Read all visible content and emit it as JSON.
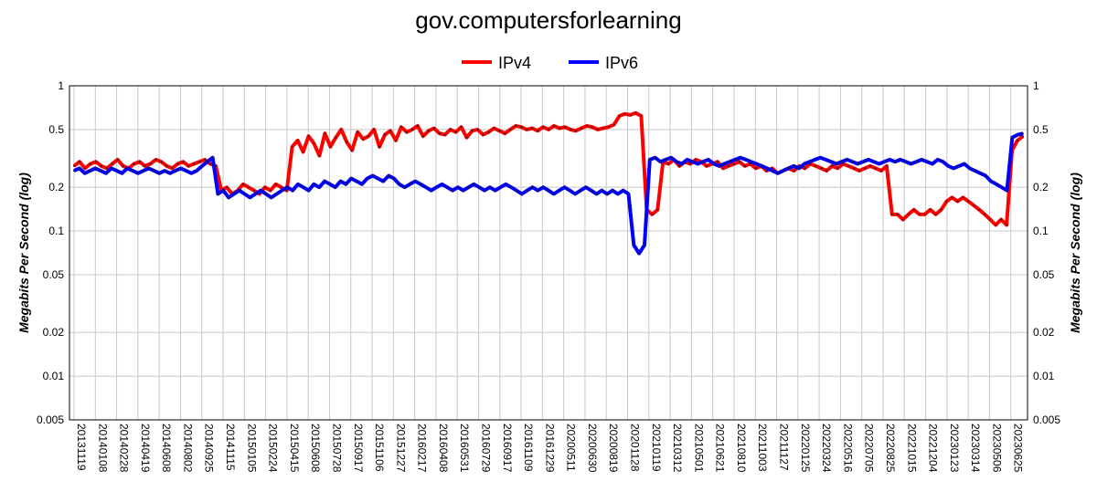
{
  "chart_data": {
    "type": "line",
    "title": "gov.computersforlearning",
    "ylabel": "Megabits Per Second (log)",
    "ylabel_right": "Megabits Per Second (log)",
    "y_scale": "log",
    "ylim": [
      0.005,
      1
    ],
    "y_ticks": [
      1,
      0.5,
      0.2,
      0.1,
      0.05,
      0.02,
      0.01,
      0.005
    ],
    "y_tick_labels": [
      "1",
      "0.5",
      "0.2",
      "0.1",
      "0.05",
      "0.02",
      "0.01",
      "0.005"
    ],
    "grid": true,
    "legend_position": "top-center",
    "x_tick_labels": [
      "20131119",
      "20140108",
      "20140228",
      "20140419",
      "20140608",
      "20140802",
      "20140925",
      "20141115",
      "20150105",
      "20150224",
      "20150415",
      "20150608",
      "20150728",
      "20150917",
      "20151106",
      "20151227",
      "20160217",
      "20160408",
      "20160531",
      "20160729",
      "20160917",
      "20161109",
      "20161229",
      "20200511",
      "20200630",
      "20200819",
      "20201128",
      "20210119",
      "20210312",
      "20210501",
      "20210621",
      "20210810",
      "20211003",
      "20211127",
      "20220125",
      "20220324",
      "20220516",
      "20220705",
      "20220825",
      "20221015",
      "20221204",
      "20230123",
      "20230314",
      "20230506",
      "20230625"
    ],
    "series": [
      {
        "name": "IPv4",
        "color": "#ff0000",
        "values": [
          0.28,
          0.3,
          0.27,
          0.29,
          0.3,
          0.28,
          0.27,
          0.29,
          0.31,
          0.28,
          0.27,
          0.29,
          0.3,
          0.28,
          0.29,
          0.31,
          0.3,
          0.28,
          0.27,
          0.29,
          0.3,
          0.28,
          0.29,
          0.3,
          0.31,
          0.29,
          0.28,
          0.19,
          0.2,
          0.18,
          0.19,
          0.21,
          0.2,
          0.19,
          0.18,
          0.2,
          0.19,
          0.21,
          0.2,
          0.19,
          0.38,
          0.42,
          0.35,
          0.45,
          0.4,
          0.33,
          0.47,
          0.38,
          0.44,
          0.5,
          0.41,
          0.36,
          0.48,
          0.43,
          0.45,
          0.5,
          0.38,
          0.46,
          0.49,
          0.42,
          0.52,
          0.48,
          0.5,
          0.53,
          0.45,
          0.49,
          0.51,
          0.47,
          0.46,
          0.5,
          0.48,
          0.52,
          0.44,
          0.49,
          0.5,
          0.46,
          0.48,
          0.51,
          0.49,
          0.47,
          0.5,
          0.53,
          0.52,
          0.5,
          0.51,
          0.49,
          0.52,
          0.5,
          0.53,
          0.51,
          0.52,
          0.5,
          0.49,
          0.51,
          0.53,
          0.52,
          0.5,
          0.51,
          0.52,
          0.54,
          0.62,
          0.64,
          0.63,
          0.65,
          0.62,
          0.14,
          0.13,
          0.14,
          0.3,
          0.29,
          0.31,
          0.28,
          0.3,
          0.29,
          0.31,
          0.3,
          0.28,
          0.29,
          0.3,
          0.27,
          0.28,
          0.29,
          0.3,
          0.28,
          0.29,
          0.27,
          0.28,
          0.26,
          0.27,
          0.25,
          0.26,
          0.27,
          0.26,
          0.28,
          0.27,
          0.29,
          0.28,
          0.27,
          0.26,
          0.28,
          0.27,
          0.29,
          0.28,
          0.27,
          0.26,
          0.27,
          0.28,
          0.27,
          0.26,
          0.28,
          0.13,
          0.13,
          0.12,
          0.13,
          0.14,
          0.13,
          0.13,
          0.14,
          0.13,
          0.14,
          0.16,
          0.17,
          0.16,
          0.17,
          0.16,
          0.15,
          0.14,
          0.13,
          0.12,
          0.11,
          0.12,
          0.11,
          0.36,
          0.42,
          0.45
        ]
      },
      {
        "name": "IPv6",
        "color": "#0000ff",
        "values": [
          0.26,
          0.27,
          0.25,
          0.26,
          0.27,
          0.26,
          0.25,
          0.27,
          0.26,
          0.25,
          0.27,
          0.26,
          0.25,
          0.26,
          0.27,
          0.26,
          0.25,
          0.26,
          0.25,
          0.26,
          0.27,
          0.26,
          0.25,
          0.26,
          0.28,
          0.3,
          0.32,
          0.18,
          0.19,
          0.17,
          0.18,
          0.19,
          0.18,
          0.17,
          0.18,
          0.19,
          0.18,
          0.17,
          0.18,
          0.19,
          0.2,
          0.19,
          0.21,
          0.2,
          0.19,
          0.21,
          0.2,
          0.22,
          0.21,
          0.2,
          0.22,
          0.21,
          0.23,
          0.22,
          0.21,
          0.23,
          0.24,
          0.23,
          0.22,
          0.24,
          0.23,
          0.21,
          0.2,
          0.21,
          0.22,
          0.21,
          0.2,
          0.19,
          0.2,
          0.21,
          0.2,
          0.19,
          0.2,
          0.19,
          0.2,
          0.21,
          0.2,
          0.19,
          0.2,
          0.19,
          0.2,
          0.21,
          0.2,
          0.19,
          0.18,
          0.19,
          0.2,
          0.19,
          0.2,
          0.19,
          0.18,
          0.19,
          0.2,
          0.19,
          0.18,
          0.19,
          0.2,
          0.19,
          0.18,
          0.19,
          0.18,
          0.19,
          0.18,
          0.19,
          0.18,
          0.08,
          0.07,
          0.08,
          0.31,
          0.32,
          0.3,
          0.31,
          0.32,
          0.3,
          0.29,
          0.31,
          0.3,
          0.29,
          0.3,
          0.31,
          0.29,
          0.28,
          0.29,
          0.3,
          0.31,
          0.32,
          0.31,
          0.3,
          0.29,
          0.28,
          0.27,
          0.26,
          0.25,
          0.26,
          0.27,
          0.28,
          0.27,
          0.29,
          0.3,
          0.31,
          0.32,
          0.31,
          0.3,
          0.29,
          0.3,
          0.31,
          0.3,
          0.29,
          0.3,
          0.31,
          0.3,
          0.29,
          0.3,
          0.31,
          0.3,
          0.31,
          0.3,
          0.29,
          0.3,
          0.31,
          0.3,
          0.29,
          0.31,
          0.3,
          0.28,
          0.27,
          0.28,
          0.29,
          0.27,
          0.26,
          0.25,
          0.24,
          0.22,
          0.21,
          0.2,
          0.19,
          0.44,
          0.46,
          0.47
        ]
      }
    ]
  }
}
